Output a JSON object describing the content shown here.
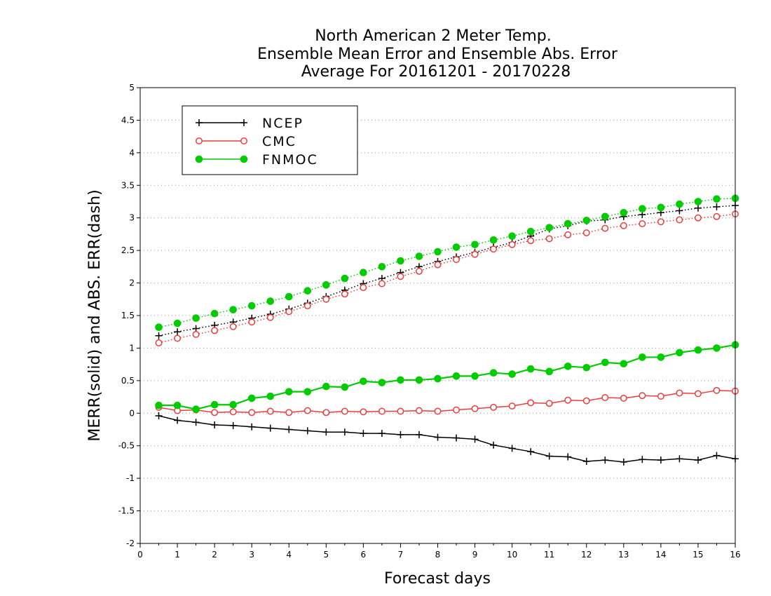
{
  "chart_data": {
    "type": "line",
    "title": [
      "North American 2 Meter Temp.",
      "Ensemble Mean Error and Ensemble Abs. Error",
      "Average For 20161201 - 20170228"
    ],
    "xlabel": "Forecast days",
    "ylabel": "MERR(solid) and ABS. ERR(dash)",
    "xlim": [
      0,
      16
    ],
    "ylim": [
      -2,
      5
    ],
    "xticks": [
      0,
      1,
      2,
      3,
      4,
      5,
      6,
      7,
      8,
      9,
      10,
      11,
      12,
      13,
      14,
      15,
      16
    ],
    "yticks": [
      -2,
      -1.5,
      -1,
      -0.5,
      0,
      0.5,
      1,
      1.5,
      2,
      2.5,
      3,
      3.5,
      4,
      4.5,
      5
    ],
    "ytick_labels": [
      "-2",
      "-1.5",
      "-1",
      "-0.5",
      "0",
      "0.5",
      "1",
      "1.5",
      "2",
      "2.5",
      "3",
      "3.5",
      "4",
      "4.5",
      "5"
    ],
    "grid": "horizontal dotted",
    "legend_position": "top-left",
    "x": [
      0.5,
      1,
      1.5,
      2,
      2.5,
      3,
      3.5,
      4,
      4.5,
      5,
      5.5,
      6,
      6.5,
      7,
      7.5,
      8,
      8.5,
      9,
      9.5,
      10,
      10.5,
      11,
      11.5,
      12,
      12.5,
      13,
      13.5,
      14,
      14.5,
      15,
      15.5,
      16
    ],
    "series": [
      {
        "name": "NCEP",
        "color": "#000000",
        "marker": "plus",
        "merr": [
          -0.04,
          -0.11,
          -0.14,
          -0.18,
          -0.19,
          -0.21,
          -0.23,
          -0.25,
          -0.27,
          -0.29,
          -0.29,
          -0.31,
          -0.31,
          -0.33,
          -0.33,
          -0.37,
          -0.38,
          -0.4,
          -0.49,
          -0.54,
          -0.59,
          -0.66,
          -0.67,
          -0.74,
          -0.72,
          -0.75,
          -0.71,
          -0.72,
          -0.7,
          -0.72,
          -0.65,
          -0.7
        ],
        "abs_err": [
          1.19,
          1.25,
          1.3,
          1.35,
          1.4,
          1.46,
          1.52,
          1.6,
          1.69,
          1.79,
          1.89,
          1.99,
          2.07,
          2.16,
          2.25,
          2.33,
          2.4,
          2.47,
          2.55,
          2.62,
          2.72,
          2.83,
          2.88,
          2.95,
          2.97,
          3.02,
          3.05,
          3.08,
          3.11,
          3.15,
          3.17,
          3.19
        ]
      },
      {
        "name": "CMC",
        "color": "#ee3b3b",
        "marker": "open-circle",
        "merr": [
          0.09,
          0.04,
          0.05,
          0.01,
          0.02,
          0.01,
          0.03,
          0.01,
          0.04,
          0.01,
          0.03,
          0.02,
          0.03,
          0.03,
          0.04,
          0.03,
          0.05,
          0.07,
          0.09,
          0.11,
          0.16,
          0.15,
          0.2,
          0.19,
          0.24,
          0.23,
          0.27,
          0.26,
          0.31,
          0.3,
          0.35,
          0.34
        ],
        "abs_err": [
          1.08,
          1.15,
          1.21,
          1.27,
          1.33,
          1.4,
          1.47,
          1.56,
          1.65,
          1.75,
          1.83,
          1.93,
          1.99,
          2.1,
          2.18,
          2.28,
          2.36,
          2.44,
          2.52,
          2.59,
          2.65,
          2.68,
          2.74,
          2.77,
          2.84,
          2.88,
          2.91,
          2.94,
          2.97,
          3.0,
          3.02,
          3.06
        ]
      },
      {
        "name": "FNMOC",
        "color": "#00cc00",
        "marker": "filled-circle",
        "merr": [
          0.12,
          0.12,
          0.06,
          0.13,
          0.13,
          0.23,
          0.26,
          0.33,
          0.33,
          0.41,
          0.4,
          0.49,
          0.47,
          0.51,
          0.51,
          0.53,
          0.57,
          0.57,
          0.62,
          0.6,
          0.68,
          0.64,
          0.72,
          0.7,
          0.78,
          0.76,
          0.86,
          0.86,
          0.93,
          0.97,
          1.0,
          1.05
        ],
        "abs_err": [
          1.32,
          1.38,
          1.46,
          1.53,
          1.59,
          1.65,
          1.72,
          1.79,
          1.88,
          1.97,
          2.07,
          2.16,
          2.25,
          2.34,
          2.41,
          2.48,
          2.55,
          2.59,
          2.66,
          2.72,
          2.79,
          2.85,
          2.91,
          2.96,
          3.02,
          3.08,
          3.14,
          3.16,
          3.21,
          3.25,
          3.29,
          3.3
        ]
      }
    ]
  }
}
